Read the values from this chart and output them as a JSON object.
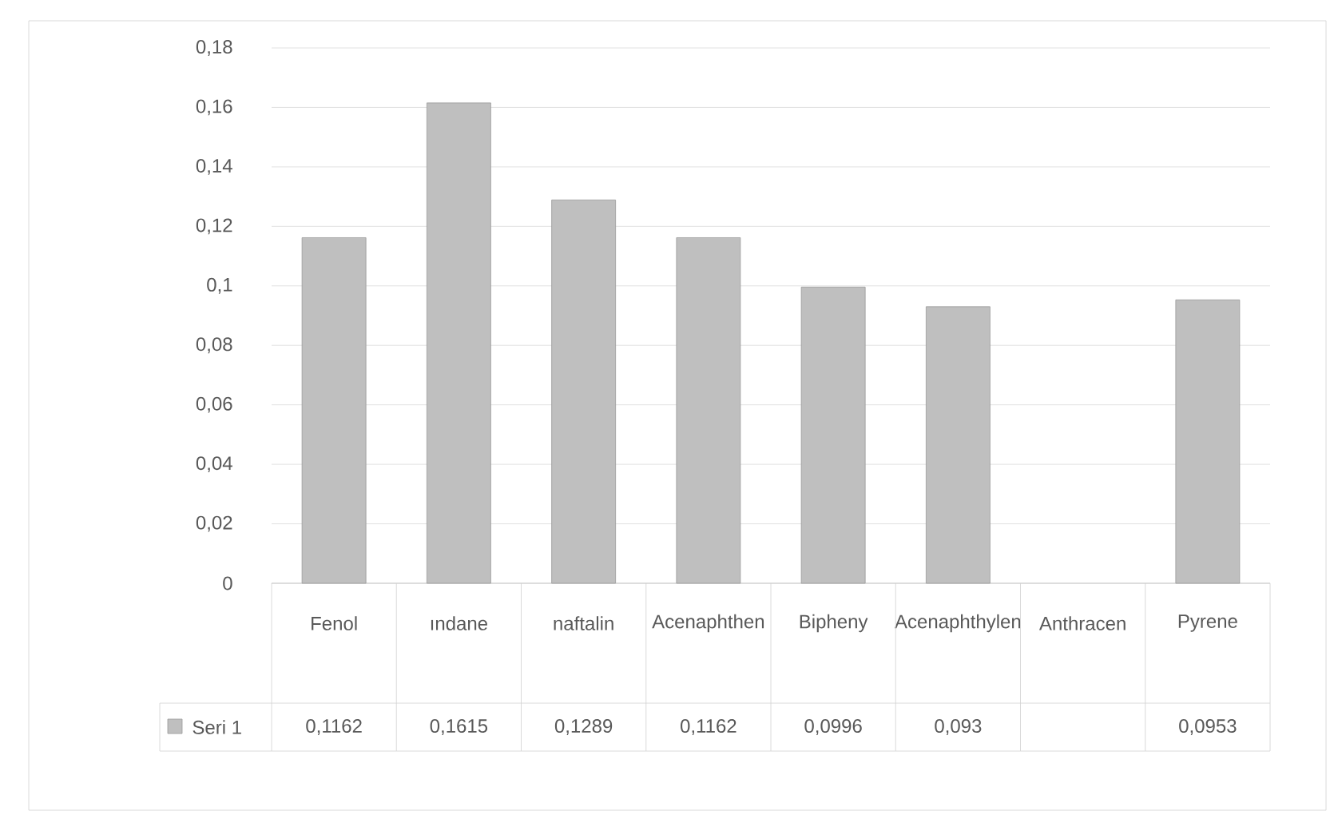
{
  "chart_data": {
    "type": "bar",
    "categories": [
      "Fenol",
      "ındane",
      "naftalin",
      "Acenaphthen",
      "Bipheny",
      "Acenaphthylen",
      "Anthracen",
      "Pyrene"
    ],
    "series": [
      {
        "name": "Seri 1",
        "color": "#bfbfbf",
        "values": [
          0.1162,
          0.1615,
          0.1289,
          0.1162,
          0.0996,
          0.093,
          null,
          0.0953
        ],
        "value_labels": [
          "0,1162",
          "0,1615",
          "0,1289",
          "0,1162",
          "0,0996",
          "0,093",
          null,
          "0,0953"
        ]
      }
    ],
    "ylim": [
      0,
      0.18
    ],
    "yticks": [
      0,
      {
        "value": 0.02,
        "label": "0,02"
      },
      {
        "value": 0.04,
        "label": "0,04"
      },
      {
        "value": 0.06,
        "label": "0,06"
      },
      {
        "value": 0.08,
        "label": "0,08"
      },
      {
        "value": 0.1,
        "label": "0,1"
      },
      {
        "value": 0.12,
        "label": "0,12"
      },
      {
        "value": 0.14,
        "label": "0,14"
      },
      {
        "value": 0.16,
        "label": "0,16"
      },
      {
        "value": 0.18,
        "label": "0,18"
      }
    ],
    "grid": "y"
  }
}
